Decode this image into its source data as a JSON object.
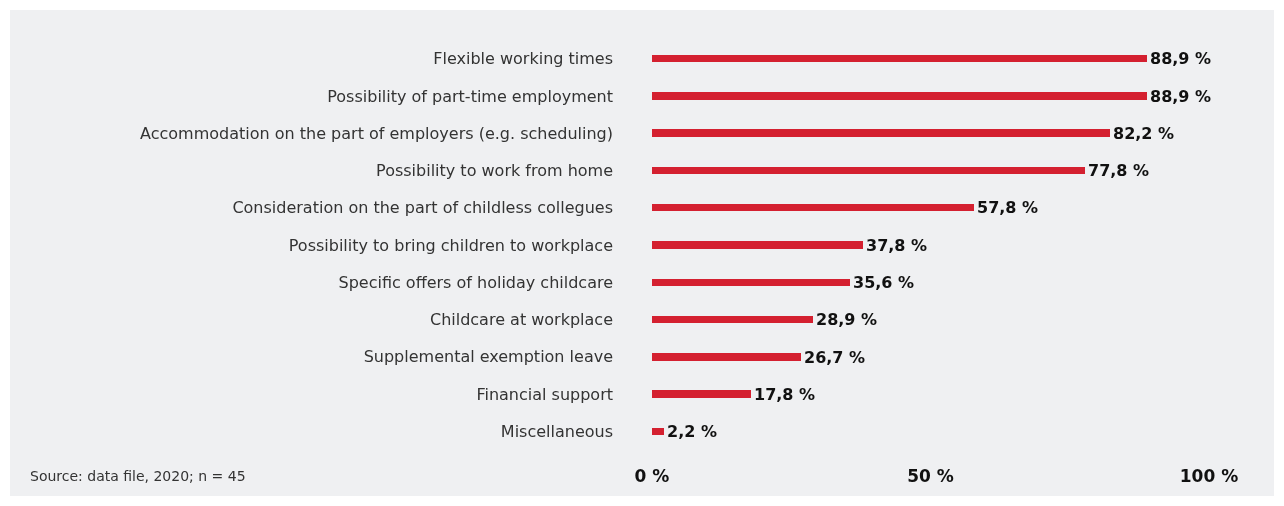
{
  "chart_data": {
    "type": "bar",
    "orientation": "horizontal",
    "categories": [
      "Flexible working times",
      "Possibility of part-time employment",
      "Accommodation on the part of employers (e.g. scheduling)",
      "Possibility to work from home",
      "Consideration on the part of childless collegues",
      "Possibility to bring children to workplace",
      "Specific offers of holiday childcare",
      "Childcare at workplace",
      "Supplemental exemption leave",
      "Financial support",
      "Miscellaneous"
    ],
    "values": [
      88.9,
      88.9,
      82.2,
      77.8,
      57.8,
      37.8,
      35.6,
      28.9,
      26.7,
      17.8,
      2.2
    ],
    "value_labels": [
      "88,9 %",
      "88,9 %",
      "82,2 %",
      "77,8 %",
      "57,8 %",
      "37,8 %",
      "35,6 %",
      "28,9 %",
      "26,7 %",
      "17,8 %",
      "2,2 %"
    ],
    "color": "#d42030",
    "xlim": [
      0,
      100
    ],
    "xticks": [
      {
        "value": 0,
        "label": "0 %"
      },
      {
        "value": 50,
        "label": "50 %"
      },
      {
        "value": 100,
        "label": "100 %"
      }
    ],
    "grid": false,
    "annotations": [
      "Source: data file, 2020; n = 45"
    ]
  }
}
